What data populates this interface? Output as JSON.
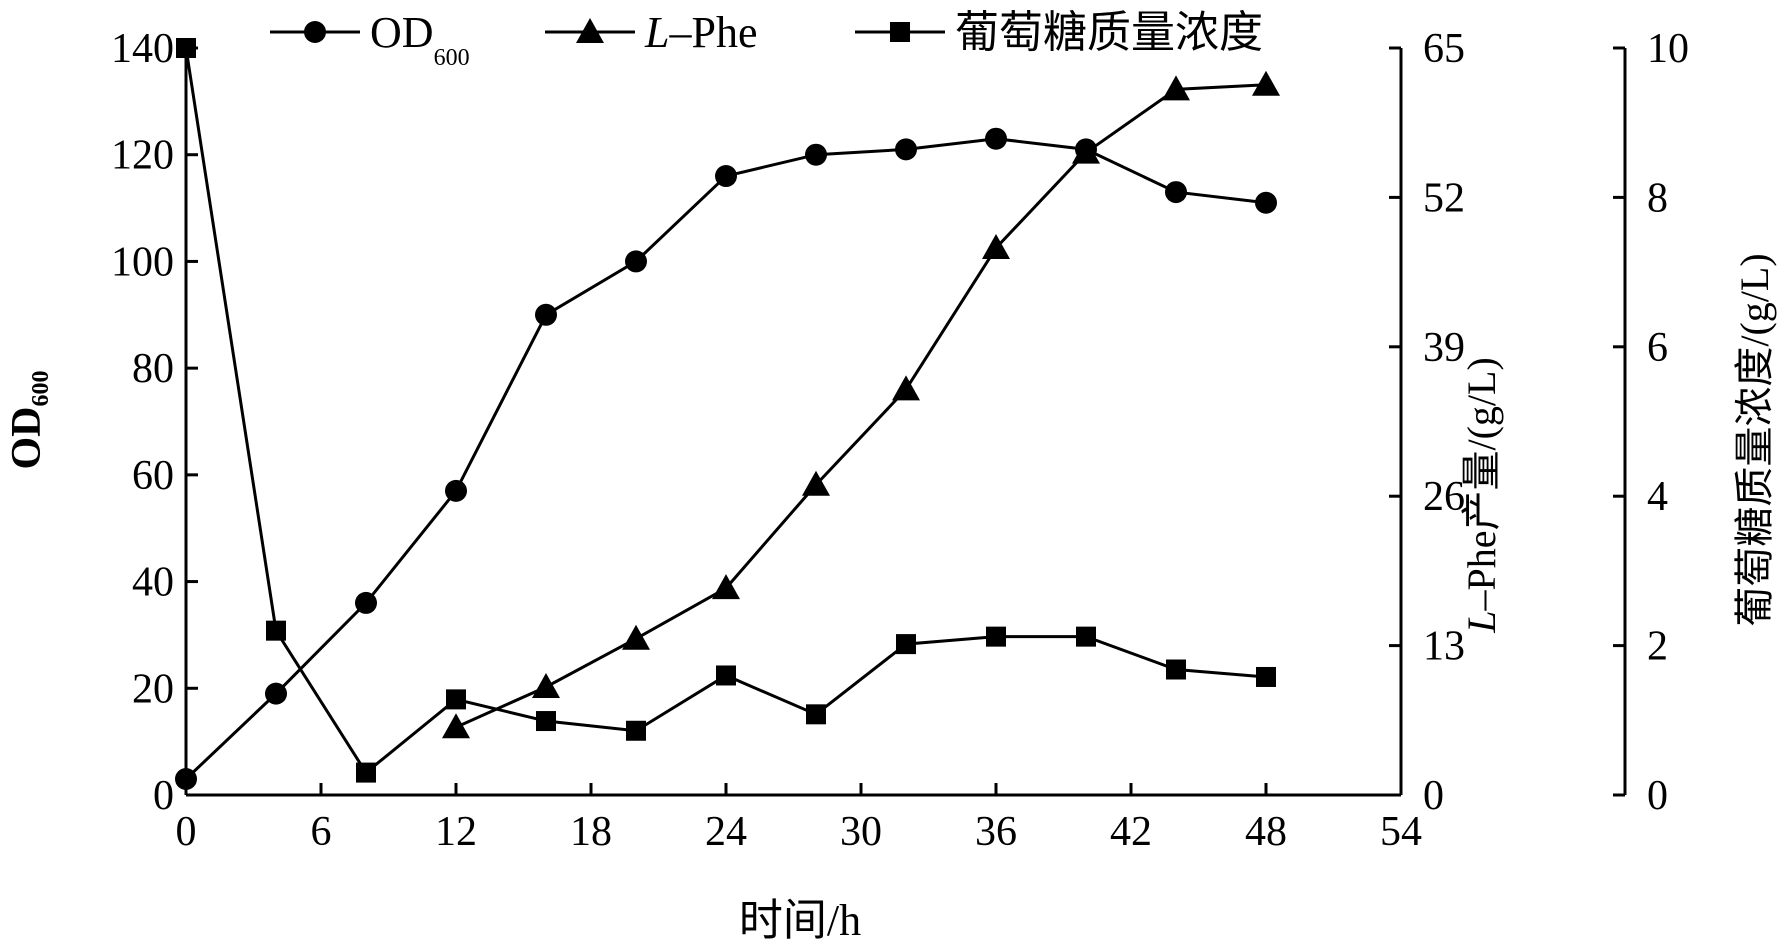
{
  "chart_data": {
    "type": "line",
    "x": [
      0,
      4,
      8,
      12,
      16,
      20,
      24,
      28,
      32,
      36,
      40,
      44,
      48
    ],
    "xlabel": "时间/h",
    "xlim": [
      0,
      54
    ],
    "xticks": [
      "0",
      "6",
      "12",
      "18",
      "24",
      "30",
      "36",
      "42",
      "48",
      "54"
    ],
    "axes": {
      "left": {
        "label": "OD",
        "label_sub": "600",
        "ylim": [
          0,
          140
        ],
        "ticks": [
          "0",
          "20",
          "40",
          "60",
          "80",
          "100",
          "120",
          "140"
        ]
      },
      "right1": {
        "label_italic": "L",
        "label": "–Phe产量/(g/L)",
        "ylim": [
          0,
          65
        ],
        "ticks": [
          "0",
          "13",
          "26",
          "39",
          "52",
          "65"
        ]
      },
      "right2": {
        "label": "葡萄糖质量浓度/(g/L)",
        "ylim": [
          0,
          10
        ],
        "ticks": [
          "0",
          "2",
          "4",
          "6",
          "8",
          "10"
        ]
      }
    },
    "series": [
      {
        "name": "OD",
        "name_sub": "600",
        "axis": "left",
        "marker": "circle",
        "x": [
          0,
          4,
          8,
          12,
          16,
          20,
          24,
          28,
          32,
          36,
          40,
          44,
          48
        ],
        "values": [
          3,
          19,
          36,
          57,
          90,
          100,
          116,
          120,
          121,
          123,
          121,
          113,
          111
        ]
      },
      {
        "name_italic": "L",
        "name": "–Phe",
        "axis": "right1",
        "marker": "triangle",
        "x": [
          12,
          16,
          20,
          24,
          28,
          32,
          36,
          40,
          44,
          48
        ],
        "values": [
          5.9,
          9.4,
          13.6,
          18,
          27,
          35.3,
          47.6,
          55.9,
          61.4,
          61.8
        ]
      },
      {
        "name": "葡萄糖质量浓度",
        "axis": "right2",
        "marker": "square",
        "x": [
          0,
          4,
          8,
          12,
          16,
          20,
          24,
          28,
          32,
          36,
          40,
          44,
          48
        ],
        "values": [
          10,
          2.2,
          0.3,
          1.28,
          0.99,
          0.86,
          1.6,
          1.08,
          2.02,
          2.12,
          2.12,
          1.68,
          1.58
        ]
      }
    ],
    "legend": "top",
    "grid": false
  }
}
